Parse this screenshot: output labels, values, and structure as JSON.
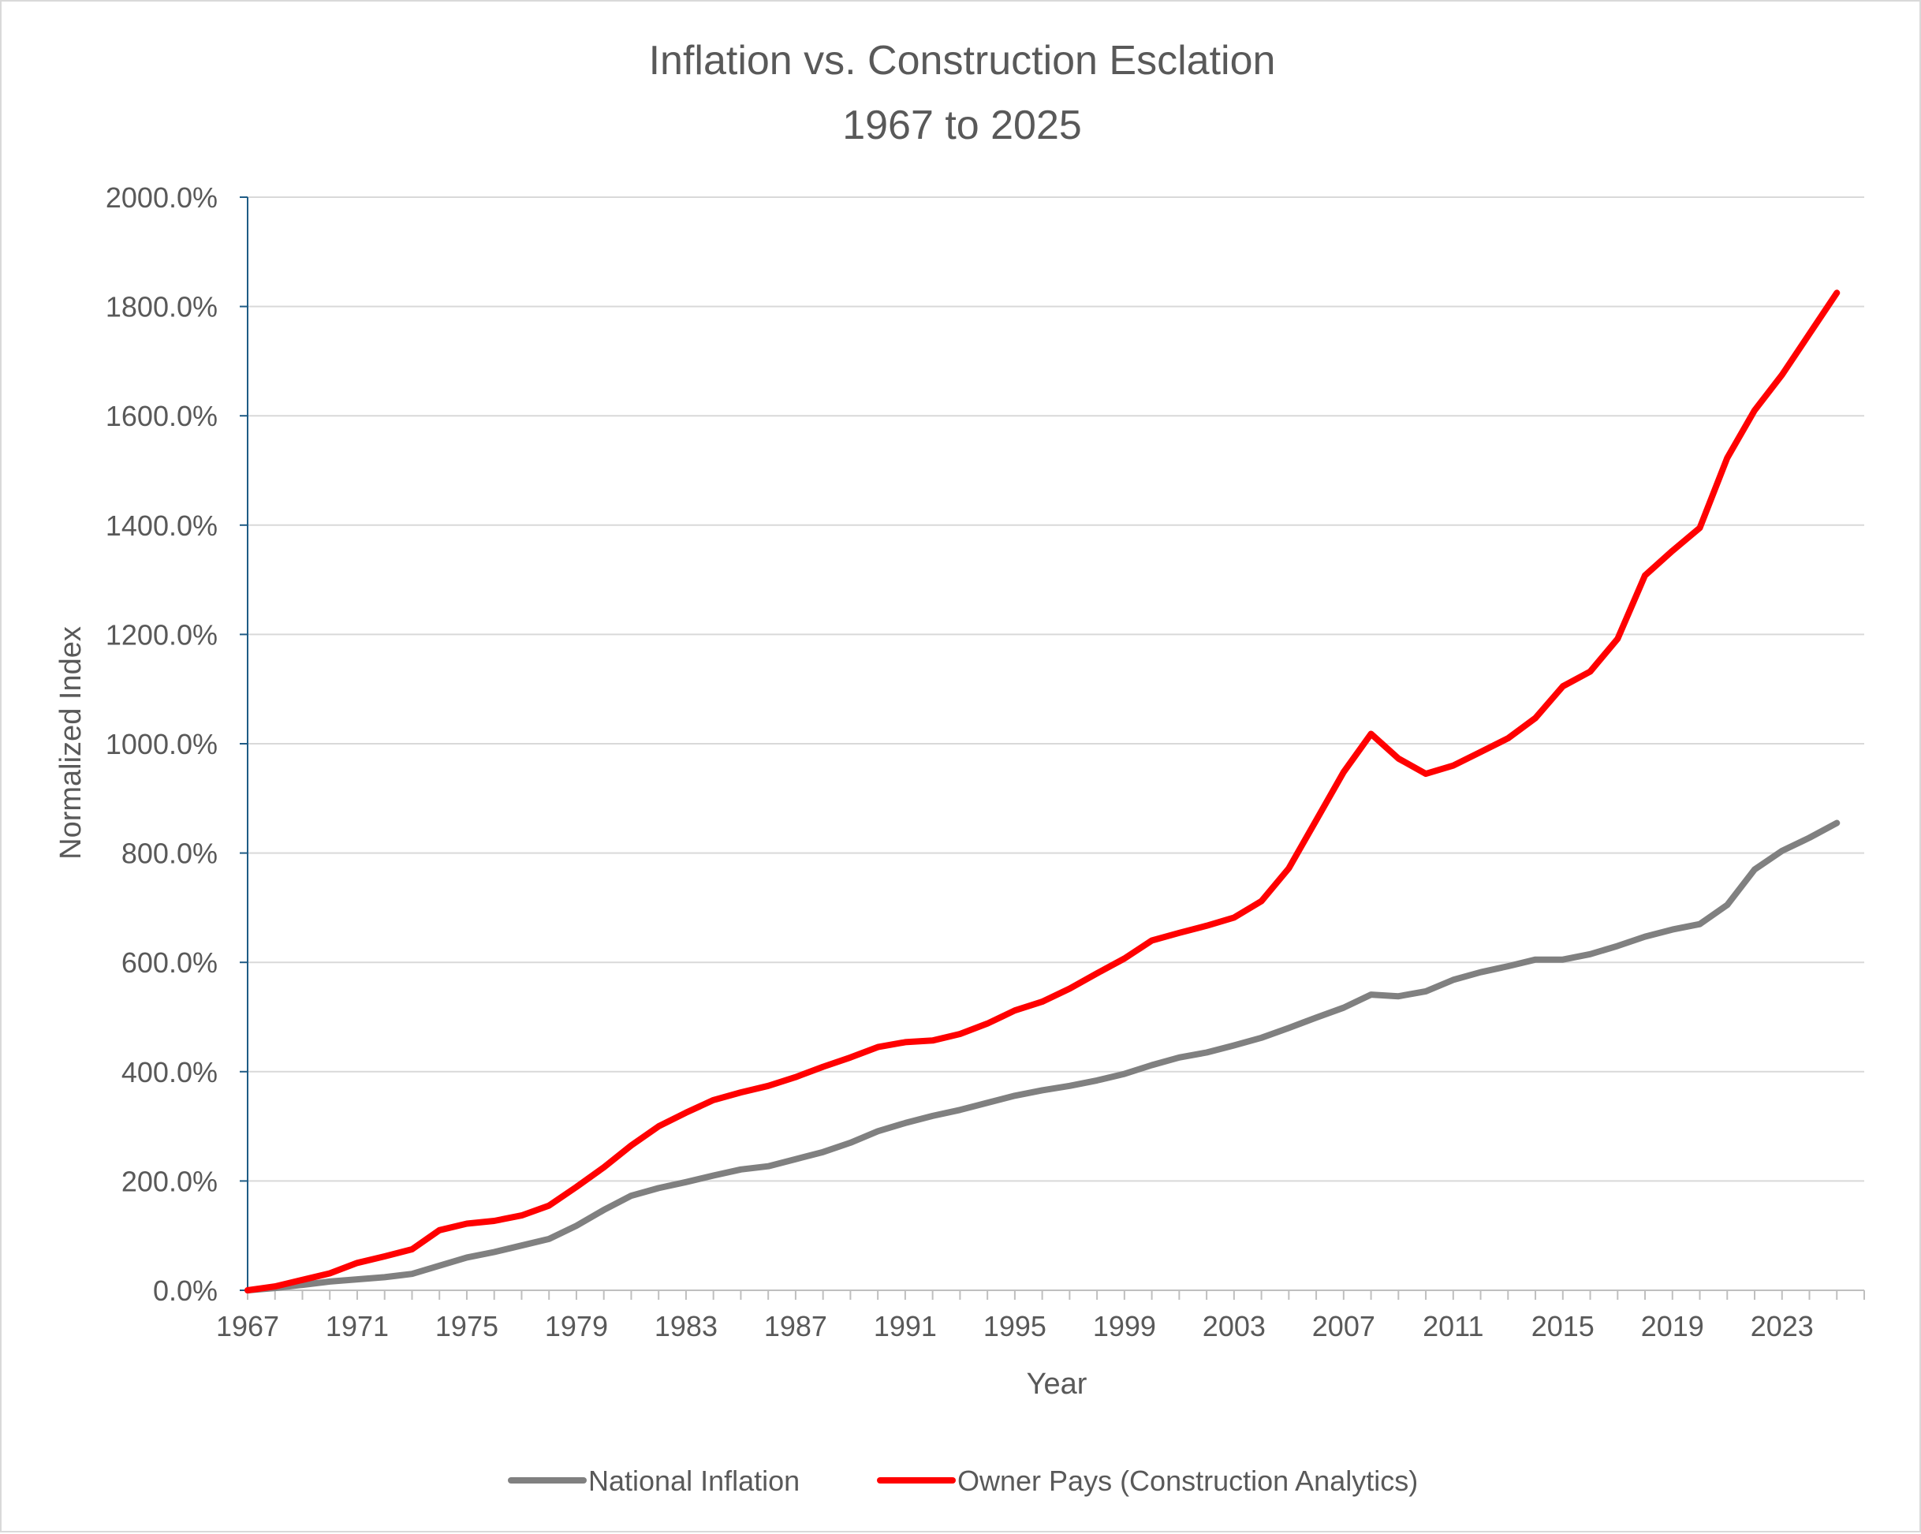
{
  "chart_data": {
    "type": "line",
    "title_lines": [
      "Inflation vs. Construction Esclation",
      "1967 to 2025"
    ],
    "xlabel": "Year",
    "ylabel": "Normalized Index",
    "x": [
      1967,
      1968,
      1969,
      1970,
      1971,
      1972,
      1973,
      1974,
      1975,
      1976,
      1977,
      1978,
      1979,
      1980,
      1981,
      1982,
      1983,
      1984,
      1985,
      1986,
      1987,
      1988,
      1989,
      1990,
      1991,
      1992,
      1993,
      1994,
      1995,
      1996,
      1997,
      1998,
      1999,
      2000,
      2001,
      2002,
      2003,
      2004,
      2005,
      2006,
      2007,
      2008,
      2009,
      2010,
      2011,
      2012,
      2013,
      2014,
      2015,
      2016,
      2017,
      2018,
      2019,
      2020,
      2021,
      2022,
      2023,
      2024,
      2025
    ],
    "xlim": [
      1967,
      2026
    ],
    "ylim": [
      0,
      2000
    ],
    "ytick_values": [
      0,
      200,
      400,
      600,
      800,
      1000,
      1200,
      1400,
      1600,
      1800,
      2000
    ],
    "ytick_labels": [
      "0.0%",
      "200.0%",
      "400.0%",
      "600.0%",
      "800.0%",
      "1000.0%",
      "1200.0%",
      "1400.0%",
      "1600.0%",
      "1800.0%",
      "2000.0%"
    ],
    "xtick_values": [
      1967,
      1971,
      1975,
      1979,
      1983,
      1987,
      1991,
      1995,
      1999,
      2003,
      2007,
      2011,
      2015,
      2019,
      2023
    ],
    "xtick_labels": [
      "1967",
      "1971",
      "1975",
      "1979",
      "1983",
      "1987",
      "1991",
      "1995",
      "1999",
      "2003",
      "2007",
      "2011",
      "2015",
      "2019",
      "2023"
    ],
    "grid": true,
    "legend_position": "bottom",
    "series": [
      {
        "name": "National Inflation",
        "color": "#808080",
        "values": [
          0,
          4,
          10,
          16,
          20,
          24,
          30,
          45,
          60,
          70,
          82,
          94,
          118,
          147,
          173,
          187,
          198,
          210,
          221,
          227,
          240,
          253,
          270,
          291,
          306,
          319,
          330,
          343,
          356,
          366,
          374,
          384,
          396,
          412,
          426,
          435,
          448,
          462,
          480,
          499,
          517,
          541,
          538,
          547,
          568,
          582,
          593,
          605,
          605,
          615,
          630,
          647,
          660,
          670,
          705,
          770,
          804,
          828,
          855
        ]
      },
      {
        "name": "Owner Pays (Construction Analytics)",
        "color": "#ff0000",
        "values": [
          0,
          7,
          19,
          31,
          50,
          62,
          75,
          110,
          122,
          127,
          137,
          155,
          189,
          225,
          265,
          300,
          325,
          348,
          362,
          374,
          390,
          409,
          426,
          445,
          454,
          457,
          469,
          488,
          512,
          528,
          552,
          580,
          607,
          640,
          654,
          667,
          682,
          712,
          772,
          860,
          948,
          1018,
          973,
          945,
          960,
          985,
          1010,
          1047,
          1105,
          1132,
          1192,
          1308,
          1353,
          1395,
          1523,
          1610,
          1675,
          1750,
          1825
        ]
      }
    ]
  }
}
